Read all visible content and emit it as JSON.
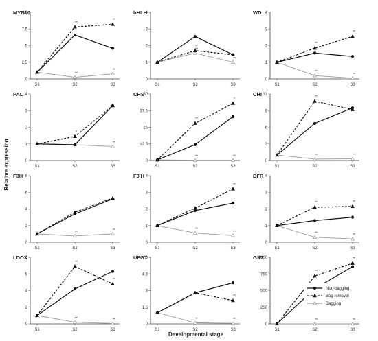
{
  "figure": {
    "ylabel": "Relative expression",
    "xlabel": "Developmental stage"
  },
  "legend": {
    "entries": [
      {
        "name": "Non-bagging",
        "marker": "circle",
        "color": "#111111",
        "dash": ""
      },
      {
        "name": "Bag removal",
        "marker": "triangle-filled",
        "color": "#111111",
        "dash": "3,2"
      },
      {
        "name": "Bagging",
        "marker": "triangle-open",
        "color": "#999999",
        "dash": ""
      }
    ]
  },
  "chart_data": [
    {
      "type": "line",
      "title": "MYB10",
      "categories": [
        "S1",
        "S2",
        "S3"
      ],
      "ylim": [
        0,
        10
      ],
      "ticks": [
        "0",
        "2.5",
        "5",
        "7.5",
        "10"
      ],
      "series": [
        {
          "name": "Non-bagging",
          "values": [
            1,
            6.6,
            4.6
          ],
          "sig": [
            "",
            "",
            ""
          ]
        },
        {
          "name": "Bag removal",
          "values": [
            1,
            7.8,
            8.2
          ],
          "sig": [
            "",
            "**",
            "**"
          ]
        },
        {
          "name": "Bagging",
          "values": [
            1,
            0.25,
            0.75
          ],
          "sig": [
            "",
            "**",
            "**"
          ]
        }
      ]
    },
    {
      "type": "line",
      "title": "bHLH",
      "categories": [
        "S1",
        "S2",
        "S3"
      ],
      "ylim": [
        0,
        4
      ],
      "ticks": [
        "0",
        "1",
        "2",
        "3",
        "4"
      ],
      "series": [
        {
          "name": "Non-bagging",
          "values": [
            1,
            2.55,
            1.45
          ],
          "sig": [
            "",
            "",
            ""
          ]
        },
        {
          "name": "Bag removal",
          "values": [
            1,
            1.7,
            1.45
          ],
          "sig": [
            "",
            "**",
            ""
          ]
        },
        {
          "name": "Bagging",
          "values": [
            1,
            1.55,
            1.0
          ],
          "sig": [
            "",
            "**",
            "**"
          ]
        }
      ]
    },
    {
      "type": "line",
      "title": "WD",
      "categories": [
        "S1",
        "S2",
        "S3"
      ],
      "ylim": [
        0,
        4
      ],
      "ticks": [
        "0",
        "1",
        "2",
        "3",
        "4"
      ],
      "series": [
        {
          "name": "Non-bagging",
          "values": [
            1,
            1.55,
            1.35
          ],
          "sig": [
            "",
            "",
            ""
          ]
        },
        {
          "name": "Bag removal",
          "values": [
            1,
            1.85,
            2.55
          ],
          "sig": [
            "",
            "**",
            "**"
          ]
        },
        {
          "name": "Bagging",
          "values": [
            1,
            0.2,
            0.05
          ],
          "sig": [
            "",
            "**",
            "**"
          ]
        }
      ]
    },
    {
      "type": "line",
      "title": "PAL",
      "categories": [
        "S1",
        "S2",
        "S3"
      ],
      "ylim": [
        0,
        4
      ],
      "ticks": [
        "0",
        "1",
        "2",
        "3",
        "4"
      ],
      "series": [
        {
          "name": "Non-bagging",
          "values": [
            1,
            0.95,
            3.3
          ],
          "sig": [
            "",
            "",
            ""
          ]
        },
        {
          "name": "Bag removal",
          "values": [
            1,
            1.45,
            3.3
          ],
          "sig": [
            "",
            "*",
            ""
          ]
        },
        {
          "name": "Bagging",
          "values": [
            1,
            0.95,
            0.85
          ],
          "sig": [
            "",
            "",
            "**"
          ]
        }
      ]
    },
    {
      "type": "line",
      "title": "CHS",
      "categories": [
        "S1",
        "S2",
        "S3"
      ],
      "ylim": [
        0,
        50
      ],
      "ticks": [
        "0",
        "12.5",
        "25",
        "37.5",
        "50"
      ],
      "series": [
        {
          "name": "Non-bagging",
          "values": [
            0.5,
            12,
            33
          ],
          "sig": [
            "",
            "",
            ""
          ]
        },
        {
          "name": "Bag removal",
          "values": [
            0.5,
            28,
            43
          ],
          "sig": [
            "",
            "**",
            "*"
          ]
        },
        {
          "name": "Bagging",
          "values": [
            0.5,
            0.2,
            0.2
          ],
          "sig": [
            "",
            "**",
            "**"
          ]
        }
      ]
    },
    {
      "type": "line",
      "title": "CHI",
      "categories": [
        "S1",
        "S2",
        "S3"
      ],
      "ylim": [
        0,
        12
      ],
      "ticks": [
        "0",
        "3",
        "6",
        "9",
        "12"
      ],
      "series": [
        {
          "name": "Non-bagging",
          "values": [
            1,
            6.7,
            9.5
          ],
          "sig": [
            "",
            "",
            ""
          ]
        },
        {
          "name": "Bag removal",
          "values": [
            1,
            10.7,
            9.2
          ],
          "sig": [
            "",
            "**",
            ""
          ]
        },
        {
          "name": "Bagging",
          "values": [
            1,
            0.25,
            0.3
          ],
          "sig": [
            "",
            "**",
            "**"
          ]
        }
      ]
    },
    {
      "type": "line",
      "title": "F3H",
      "categories": [
        "S1",
        "S2",
        "S3"
      ],
      "ylim": [
        0,
        8
      ],
      "ticks": [
        "0",
        "2",
        "4",
        "6",
        "8"
      ],
      "series": [
        {
          "name": "Non-bagging",
          "values": [
            1,
            3.4,
            5.2
          ],
          "sig": [
            "",
            "",
            ""
          ]
        },
        {
          "name": "Bag removal",
          "values": [
            1,
            3.6,
            5.3
          ],
          "sig": [
            "",
            "",
            ""
          ]
        },
        {
          "name": "Bagging",
          "values": [
            1,
            0.75,
            1.0
          ],
          "sig": [
            "",
            "**",
            "**"
          ]
        }
      ]
    },
    {
      "type": "line",
      "title": "F3'H",
      "categories": [
        "S1",
        "S2",
        "S3"
      ],
      "ylim": [
        0,
        4
      ],
      "ticks": [
        "0",
        "1",
        "2",
        "3",
        "4"
      ],
      "series": [
        {
          "name": "Non-bagging",
          "values": [
            1,
            1.9,
            2.35
          ],
          "sig": [
            "",
            "",
            ""
          ]
        },
        {
          "name": "Bag removal",
          "values": [
            1,
            2.05,
            3.2
          ],
          "sig": [
            "",
            "",
            "**"
          ]
        },
        {
          "name": "Bagging",
          "values": [
            1,
            0.55,
            0.4
          ],
          "sig": [
            "",
            "**",
            "**"
          ]
        }
      ]
    },
    {
      "type": "line",
      "title": "DFR",
      "categories": [
        "S1",
        "S2",
        "S3"
      ],
      "ylim": [
        0,
        4
      ],
      "ticks": [
        "0",
        "1",
        "2",
        "3",
        "4"
      ],
      "series": [
        {
          "name": "Non-bagging",
          "values": [
            1,
            1.3,
            1.5
          ],
          "sig": [
            "",
            "",
            ""
          ]
        },
        {
          "name": "Bag removal",
          "values": [
            1,
            2.1,
            2.15
          ],
          "sig": [
            "",
            "**",
            "**"
          ]
        },
        {
          "name": "Bagging",
          "values": [
            1,
            0.3,
            0.2
          ],
          "sig": [
            "",
            "**",
            "**"
          ]
        }
      ]
    },
    {
      "type": "line",
      "title": "LDOX",
      "categories": [
        "S1",
        "S2",
        "S3"
      ],
      "ylim": [
        0,
        8
      ],
      "ticks": [
        "0",
        "2",
        "4",
        "6",
        "8"
      ],
      "series": [
        {
          "name": "Non-bagging",
          "values": [
            1,
            4.2,
            6.3
          ],
          "sig": [
            "",
            "",
            ""
          ]
        },
        {
          "name": "Bag removal",
          "values": [
            1,
            6.9,
            4.8
          ],
          "sig": [
            "",
            "**",
            "**"
          ]
        },
        {
          "name": "Bagging",
          "values": [
            1,
            0.2,
            0.05
          ],
          "sig": [
            "",
            "**",
            "**"
          ]
        }
      ]
    },
    {
      "type": "line",
      "title": "UFGT",
      "categories": [
        "S1",
        "S2",
        "S3"
      ],
      "ylim": [
        0,
        6
      ],
      "ticks": [
        "0",
        "1.5",
        "3",
        "4.5",
        "6"
      ],
      "series": [
        {
          "name": "Non-bagging",
          "values": [
            1,
            2.8,
            3.7
          ],
          "sig": [
            "",
            "",
            ""
          ]
        },
        {
          "name": "Bag removal",
          "values": [
            1,
            2.8,
            2.1
          ],
          "sig": [
            "",
            "",
            "**"
          ]
        },
        {
          "name": "Bagging",
          "values": [
            1,
            0.1,
            0.05
          ],
          "sig": [
            "",
            "**",
            "**"
          ]
        }
      ]
    },
    {
      "type": "line",
      "title": "GST",
      "categories": [
        "S1",
        "S2",
        "S3"
      ],
      "ylim": [
        0,
        1000
      ],
      "ticks": [
        "0",
        "250",
        "500",
        "750",
        "1000"
      ],
      "series": [
        {
          "name": "Non-bagging",
          "values": [
            1,
            530,
            860
          ],
          "sig": [
            "",
            "",
            ""
          ]
        },
        {
          "name": "Bag removal",
          "values": [
            1,
            720,
            910
          ],
          "sig": [
            "",
            "**",
            "**"
          ]
        },
        {
          "name": "Bagging",
          "values": [
            1,
            1,
            1
          ],
          "sig": [
            "",
            "**",
            "**"
          ]
        }
      ]
    }
  ]
}
